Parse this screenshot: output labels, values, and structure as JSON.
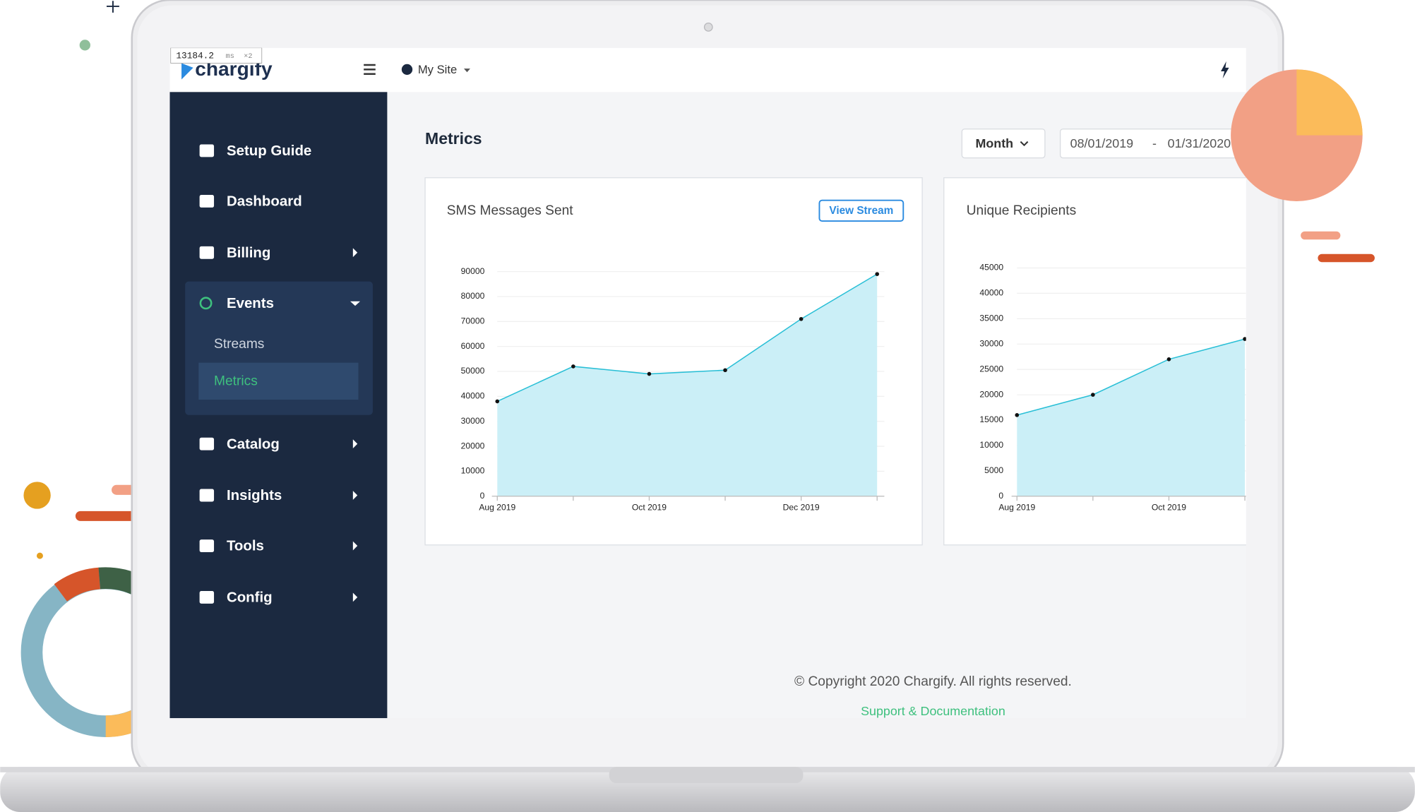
{
  "debug": {
    "time": "13184.2",
    "unit": "ms",
    "count": "×2"
  },
  "header": {
    "logo": "chargify",
    "site": "My Site"
  },
  "sidebar": {
    "items": [
      "Setup Guide",
      "Dashboard",
      "Billing",
      "Events",
      "Catalog",
      "Insights",
      "Tools",
      "Config"
    ],
    "submenu": [
      "Streams",
      "Metrics"
    ]
  },
  "page": {
    "title": "Metrics",
    "period": "Month",
    "date_from": "08/01/2019",
    "date_sep": "-",
    "date_to": "01/31/2020"
  },
  "charts": [
    {
      "type": "line",
      "title": "SMS Messages Sent",
      "button": "View Stream",
      "categories": [
        "Aug 2019",
        null,
        "Oct 2019",
        null,
        "Dec 2019",
        null
      ],
      "values": [
        38000,
        52000,
        49000,
        50500,
        71000,
        89000
      ],
      "color": "#29bfd6",
      "area_color": "#cbeff7",
      "ylim": [
        0,
        90000
      ],
      "yticks": [
        0,
        10000,
        20000,
        30000,
        40000,
        50000,
        60000,
        70000,
        80000,
        90000
      ],
      "grid": true
    },
    {
      "type": "line",
      "title": "Unique Recipients",
      "categories": [
        "Aug 2019",
        null,
        "Oct 2019",
        null
      ],
      "values": [
        16000,
        20000,
        27000,
        31000
      ],
      "color": "#29bfd6",
      "area_color": "#cbeff7",
      "ylim": [
        0,
        45000
      ],
      "yticks": [
        0,
        5000,
        10000,
        15000,
        20000,
        25000,
        30000,
        35000,
        40000,
        45000
      ],
      "grid": true
    }
  ],
  "footer": {
    "copyright": "© Copyright 2020 Chargify. All rights reserved.",
    "link": "Support & Documentation"
  }
}
